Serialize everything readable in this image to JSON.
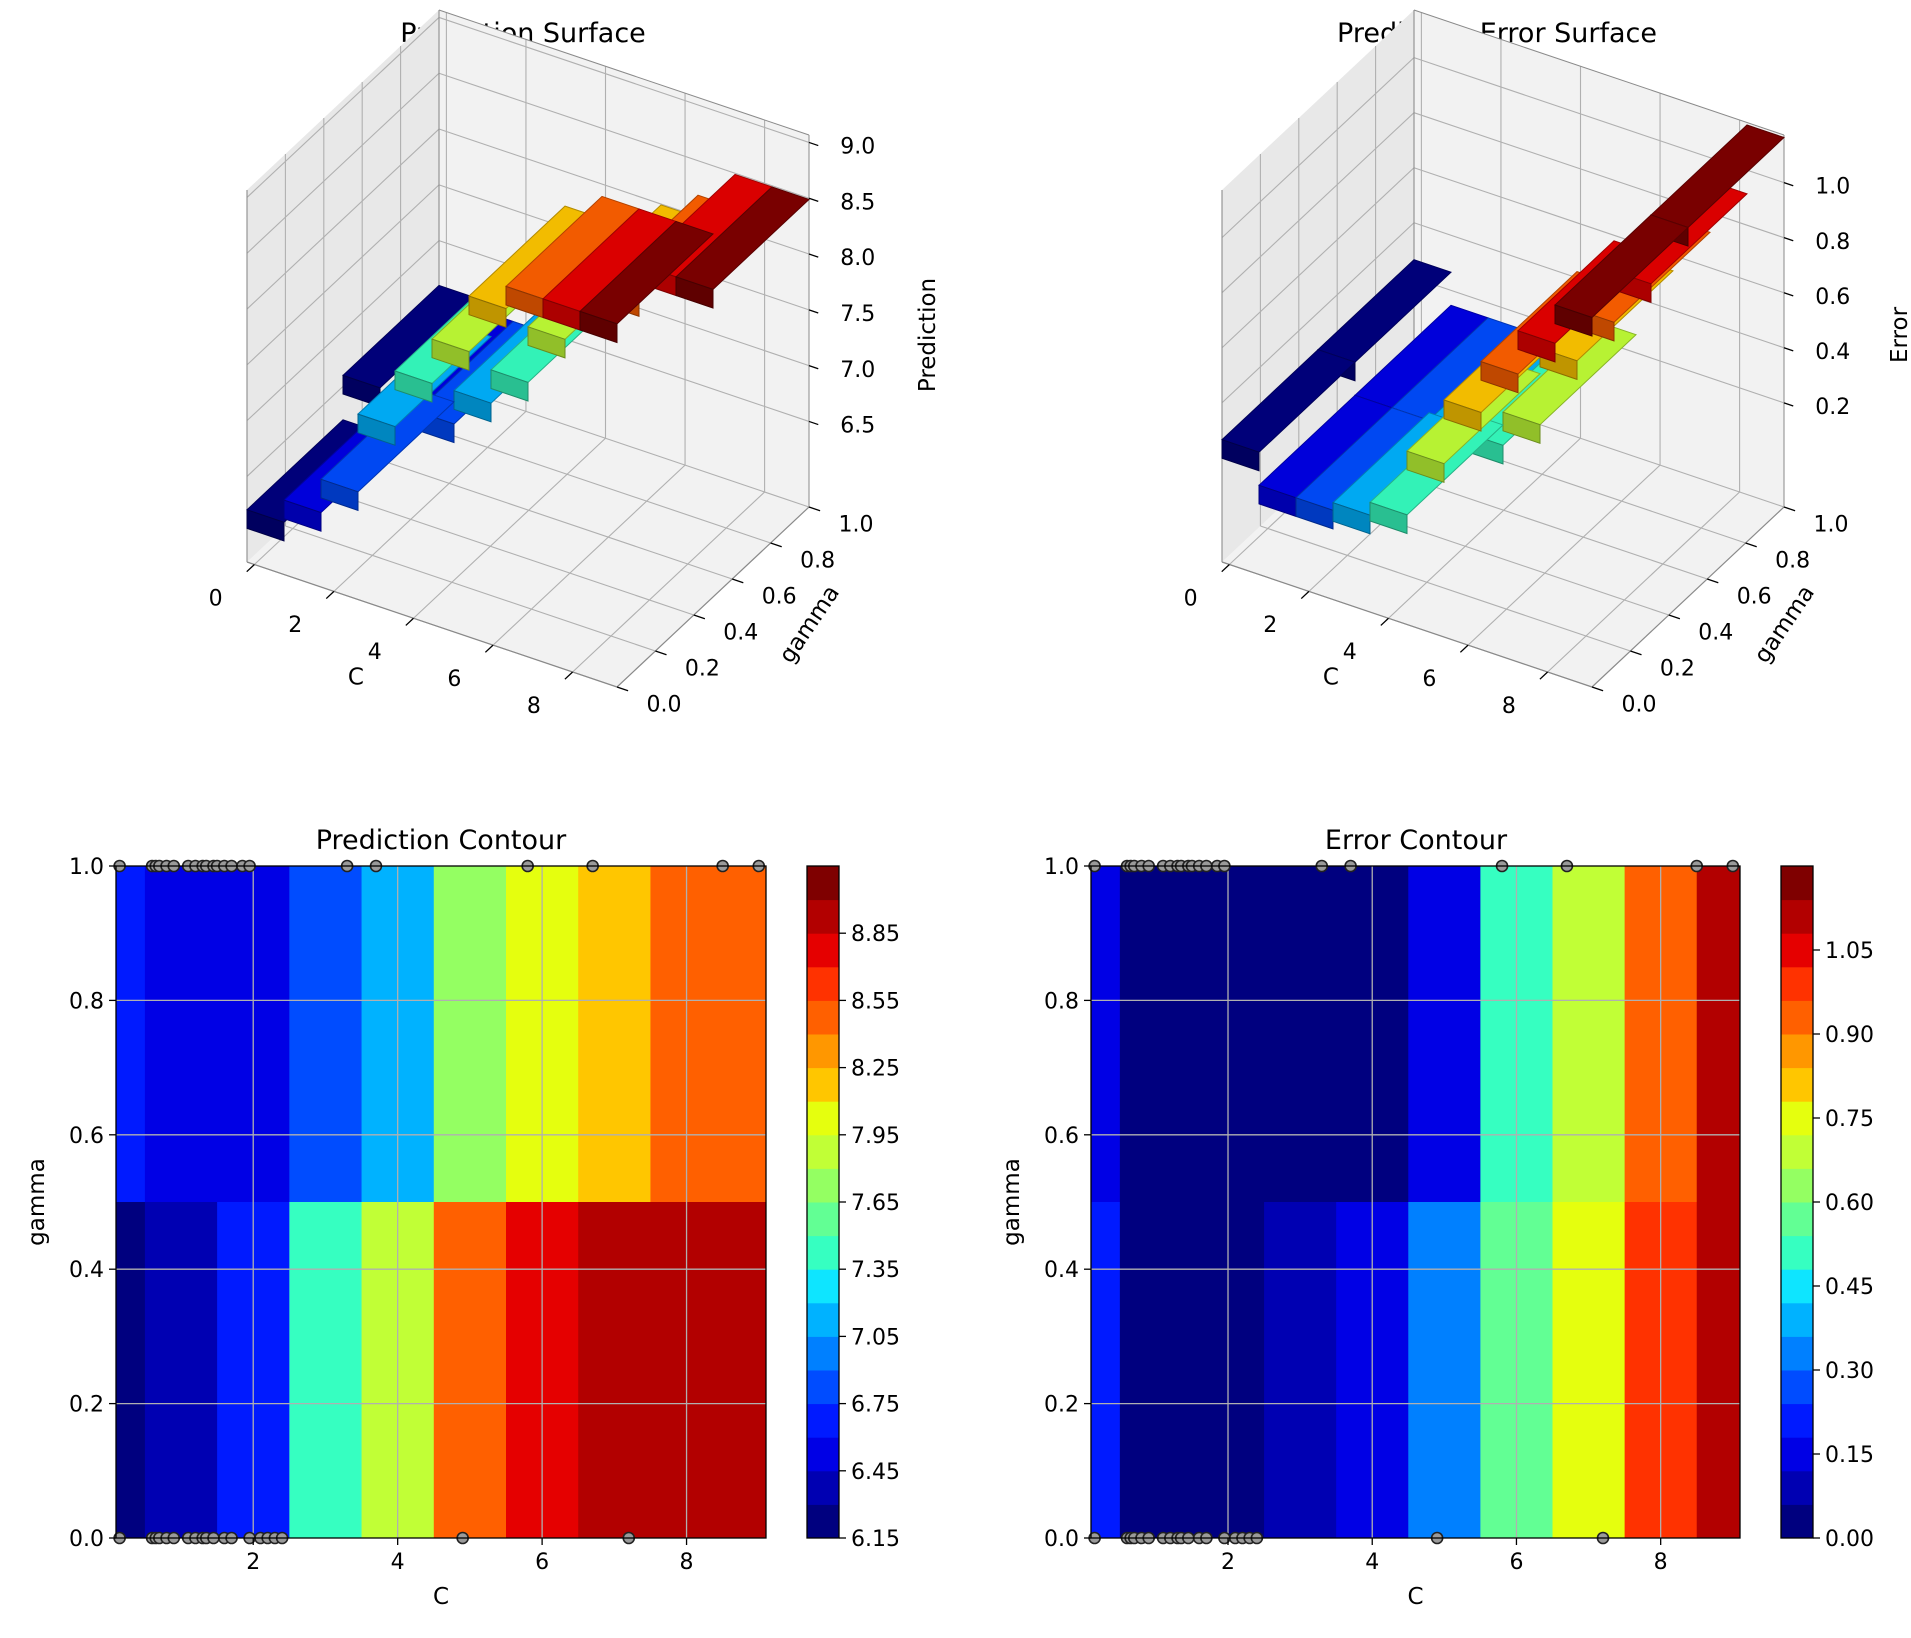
{
  "colors": {
    "jet": [
      "#00007f",
      "#0000b2",
      "#0000e5",
      "#001aff",
      "#004cff",
      "#0080ff",
      "#00b2ff",
      "#0ee5ff",
      "#36ffc1",
      "#62ff94",
      "#94ff62",
      "#c1ff36",
      "#e5ff0e",
      "#ffc600",
      "#ff9700",
      "#ff6000",
      "#ff3200",
      "#e50000",
      "#b20000",
      "#7f0000"
    ],
    "grid": "#b0b0b0",
    "pane": "#f2f2f2"
  },
  "chart_data": [
    {
      "id": "surface",
      "type": "surface3d",
      "title": "Prediction Surface",
      "xlabel": "C",
      "ylabel": "gamma",
      "zlabel": "Prediction",
      "xticks": [
        "0",
        "2",
        "4",
        "6",
        "8"
      ],
      "yticks": [
        "0.0",
        "0.2",
        "0.4",
        "0.6",
        "0.8",
        "1.0"
      ],
      "zticks": [
        "6.5",
        "7.0",
        "7.5",
        "8.0",
        "8.5",
        "9.0"
      ],
      "x_bins": [
        0,
        1,
        2,
        3,
        4,
        5,
        6,
        7,
        8,
        9
      ],
      "z_low_gamma": [
        6.2,
        6.4,
        6.7,
        7.4,
        7.9,
        8.3,
        8.8,
        9.0,
        9.0,
        9.0
      ],
      "z_high_gamma": [
        6.6,
        6.5,
        6.5,
        6.8,
        7.1,
        7.6,
        8.0,
        8.2,
        8.5,
        8.5
      ]
    },
    {
      "id": "errsurface",
      "type": "surface3d",
      "title": "Prediction Error Surface",
      "xlabel": "C",
      "ylabel": "gamma",
      "zlabel": "Error",
      "xticks": [
        "0",
        "2",
        "4",
        "6",
        "8"
      ],
      "yticks": [
        "0.0",
        "0.2",
        "0.4",
        "0.6",
        "0.8",
        "1.0"
      ],
      "zticks": [
        "0.2",
        "0.4",
        "0.6",
        "0.8",
        "1.0"
      ],
      "x_bins": [
        0,
        1,
        2,
        3,
        4,
        5,
        6,
        7,
        8,
        9
      ],
      "z_low_gamma": [
        0.15,
        0.02,
        0.02,
        0.05,
        0.1,
        0.35,
        0.6,
        0.8,
        0.97,
        1.12
      ],
      "z_high_gamma": [
        0.15,
        0.02,
        0.02,
        0.02,
        0.02,
        0.15,
        0.45,
        0.65,
        0.85,
        1.12
      ]
    },
    {
      "id": "predcontour",
      "type": "heatmap",
      "title": "Prediction Contour",
      "xlabel": "C",
      "ylabel": "gamma",
      "xlim": [
        0.1,
        9.1
      ],
      "ylim": [
        0,
        1
      ],
      "xticks": [
        "2",
        "4",
        "6",
        "8"
      ],
      "yticks": [
        "0.0",
        "0.2",
        "0.4",
        "0.6",
        "0.8",
        "1.0"
      ],
      "gamma_split": 0.5,
      "bands_high": [
        [
          0.1,
          0.5,
          6.65
        ],
        [
          0.5,
          2.5,
          6.5
        ],
        [
          2.5,
          3.5,
          6.8
        ],
        [
          3.5,
          4.5,
          7.15
        ],
        [
          4.5,
          5.5,
          7.65
        ],
        [
          5.5,
          6.5,
          7.95
        ],
        [
          6.5,
          7.5,
          8.2
        ],
        [
          7.5,
          9.1,
          8.5
        ]
      ],
      "bands_low": [
        [
          0.1,
          0.5,
          6.2
        ],
        [
          0.5,
          1.5,
          6.35
        ],
        [
          1.5,
          2.5,
          6.65
        ],
        [
          2.5,
          3.5,
          7.4
        ],
        [
          3.5,
          4.5,
          7.9
        ],
        [
          4.5,
          5.5,
          8.4
        ],
        [
          5.5,
          6.5,
          8.75
        ],
        [
          6.5,
          9.1,
          9.0
        ]
      ],
      "colorbar": {
        "min": 6.15,
        "max": 9.15,
        "ticks": [
          "6.15",
          "6.45",
          "6.75",
          "7.05",
          "7.35",
          "7.65",
          "7.95",
          "8.25",
          "8.55",
          "8.85"
        ],
        "tick_values": [
          6.15,
          6.45,
          6.75,
          7.05,
          7.35,
          7.65,
          7.95,
          8.25,
          8.55,
          8.85
        ]
      },
      "samples_top": [
        0.15,
        0.6,
        0.65,
        0.7,
        0.8,
        0.9,
        1.1,
        1.2,
        1.3,
        1.35,
        1.45,
        1.5,
        1.6,
        1.7,
        1.85,
        1.95,
        3.3,
        3.7,
        5.8,
        6.7,
        8.5,
        9.0
      ],
      "samples_bottom": [
        0.15,
        0.6,
        0.65,
        0.7,
        0.8,
        0.9,
        1.1,
        1.2,
        1.3,
        1.35,
        1.45,
        1.6,
        1.7,
        1.95,
        2.1,
        2.2,
        2.3,
        2.4,
        4.9,
        7.2
      ]
    },
    {
      "id": "errcontour",
      "type": "heatmap",
      "title": "Error Contour",
      "xlabel": "C",
      "ylabel": "gamma",
      "xlim": [
        0.1,
        9.1
      ],
      "ylim": [
        0,
        1
      ],
      "xticks": [
        "2",
        "4",
        "6",
        "8"
      ],
      "yticks": [
        "0.0",
        "0.2",
        "0.4",
        "0.6",
        "0.8",
        "1.0"
      ],
      "gamma_split": 0.5,
      "bands_high": [
        [
          0.1,
          0.5,
          0.14
        ],
        [
          0.5,
          4.5,
          0.02
        ],
        [
          4.5,
          5.5,
          0.15
        ],
        [
          5.5,
          6.5,
          0.48
        ],
        [
          6.5,
          7.5,
          0.67
        ],
        [
          7.5,
          8.5,
          0.92
        ],
        [
          8.5,
          9.1,
          1.12
        ]
      ],
      "bands_low": [
        [
          0.1,
          0.5,
          0.2
        ],
        [
          0.5,
          2.5,
          0.02
        ],
        [
          2.5,
          3.5,
          0.07
        ],
        [
          3.5,
          4.5,
          0.15
        ],
        [
          4.5,
          5.5,
          0.35
        ],
        [
          5.5,
          6.5,
          0.58
        ],
        [
          6.5,
          7.5,
          0.77
        ],
        [
          7.5,
          8.5,
          0.97
        ],
        [
          8.5,
          9.1,
          1.12
        ]
      ],
      "colorbar": {
        "min": 0.0,
        "max": 1.2,
        "ticks": [
          "0.00",
          "0.15",
          "0.30",
          "0.45",
          "0.60",
          "0.75",
          "0.90",
          "1.05"
        ],
        "tick_values": [
          0.0,
          0.15,
          0.3,
          0.45,
          0.6,
          0.75,
          0.9,
          1.05
        ]
      },
      "samples_top": [
        0.15,
        0.6,
        0.65,
        0.7,
        0.8,
        0.9,
        1.1,
        1.2,
        1.3,
        1.35,
        1.45,
        1.5,
        1.6,
        1.7,
        1.85,
        1.95,
        3.3,
        3.7,
        5.8,
        6.7,
        8.5,
        9.0
      ],
      "samples_bottom": [
        0.15,
        0.6,
        0.65,
        0.7,
        0.8,
        0.9,
        1.1,
        1.2,
        1.3,
        1.35,
        1.45,
        1.6,
        1.7,
        1.95,
        2.1,
        2.2,
        2.3,
        2.4,
        4.9,
        7.2
      ]
    }
  ]
}
